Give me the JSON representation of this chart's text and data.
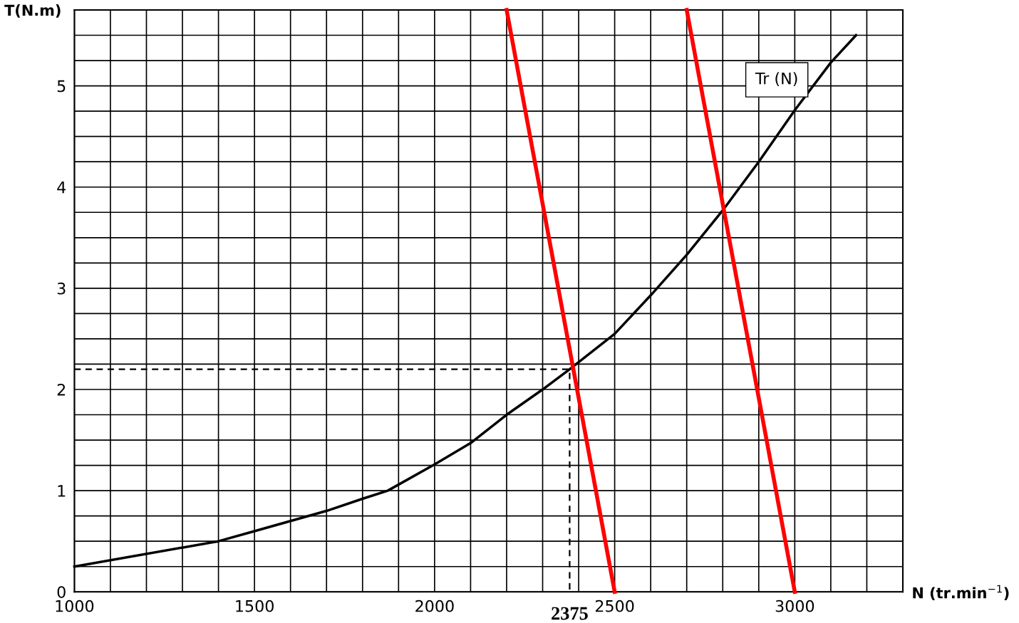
{
  "chart_data": {
    "type": "line",
    "xlabel": "N (tr.min$^{−1}$)",
    "ylabel": "T(N.m)",
    "xlim": [
      1000,
      3300
    ],
    "ylim": [
      0,
      5.75
    ],
    "xticks": [
      1000,
      {
        "value": 1100,
        "label": null
      },
      {
        "value": 1200,
        "label": null
      },
      {
        "value": 1300,
        "label": null
      },
      {
        "value": 1400,
        "label": null
      },
      1500,
      {
        "value": 1600,
        "label": null
      },
      {
        "value": 1700,
        "label": null
      },
      {
        "value": 1800,
        "label": null
      },
      {
        "value": 1900,
        "label": null
      },
      2000,
      {
        "value": 2100,
        "label": null
      },
      {
        "value": 2200,
        "label": null
      },
      {
        "value": 2300,
        "label": null
      },
      {
        "value": 2400,
        "label": null
      },
      2500,
      {
        "value": 2600,
        "label": null
      },
      {
        "value": 2700,
        "label": null
      },
      {
        "value": 2800,
        "label": null
      },
      {
        "value": 2900,
        "label": null
      },
      3000,
      {
        "value": 3100,
        "label": null
      },
      {
        "value": 3200,
        "label": null
      },
      {
        "value": 3300,
        "label": null
      }
    ],
    "yticks": [
      0,
      {
        "value": 0.25,
        "label": null
      },
      {
        "value": 0.5,
        "label": null
      },
      {
        "value": 0.75,
        "label": null
      },
      1,
      {
        "value": 1.25,
        "label": null
      },
      {
        "value": 1.5,
        "label": null
      },
      {
        "value": 1.75,
        "label": null
      },
      2,
      {
        "value": 2.25,
        "label": null
      },
      {
        "value": 2.5,
        "label": null
      },
      {
        "value": 2.75,
        "label": null
      },
      3,
      {
        "value": 3.25,
        "label": null
      },
      {
        "value": 3.5,
        "label": null
      },
      {
        "value": 3.75,
        "label": null
      },
      4,
      {
        "value": 4.25,
        "label": null
      },
      {
        "value": 4.5,
        "label": null
      },
      {
        "value": 4.75,
        "label": null
      },
      5,
      {
        "value": 5.25,
        "label": null
      },
      {
        "value": 5.5,
        "label": null
      },
      {
        "value": 5.75,
        "label": null
      }
    ],
    "grid": true,
    "line_style": "solid",
    "marker": "none",
    "series": [
      {
        "name": "Tr (N)",
        "color": "#000000",
        "x": [
          1000,
          1400,
          1500,
          1700,
          1800,
          1870,
          2000,
          2100,
          2200,
          2300,
          2375,
          2500,
          2600,
          2700,
          2800,
          2900,
          3000,
          3100,
          3170
        ],
        "values": [
          0.25,
          0.5,
          0.6,
          0.8,
          0.92,
          1.0,
          1.26,
          1.47,
          1.75,
          2.0,
          2.2,
          2.55,
          2.93,
          3.33,
          3.77,
          4.25,
          4.76,
          5.23,
          5.5
        ]
      },
      {
        "color": "#ff0000",
        "x": [
          2200,
          2500
        ],
        "values": [
          5.75,
          0
        ]
      },
      {
        "color": "#ff0000",
        "x": [
          2700,
          3000
        ],
        "values": [
          5.75,
          0
        ]
      },
      {
        "color": "#000000",
        "line_style": "dashed",
        "x": [
          1000,
          2375,
          2375
        ],
        "values": [
          2.2,
          2.2,
          0
        ]
      }
    ],
    "annotations": [
      {
        "text": "2375",
        "x": 2375,
        "y": 0
      }
    ]
  }
}
